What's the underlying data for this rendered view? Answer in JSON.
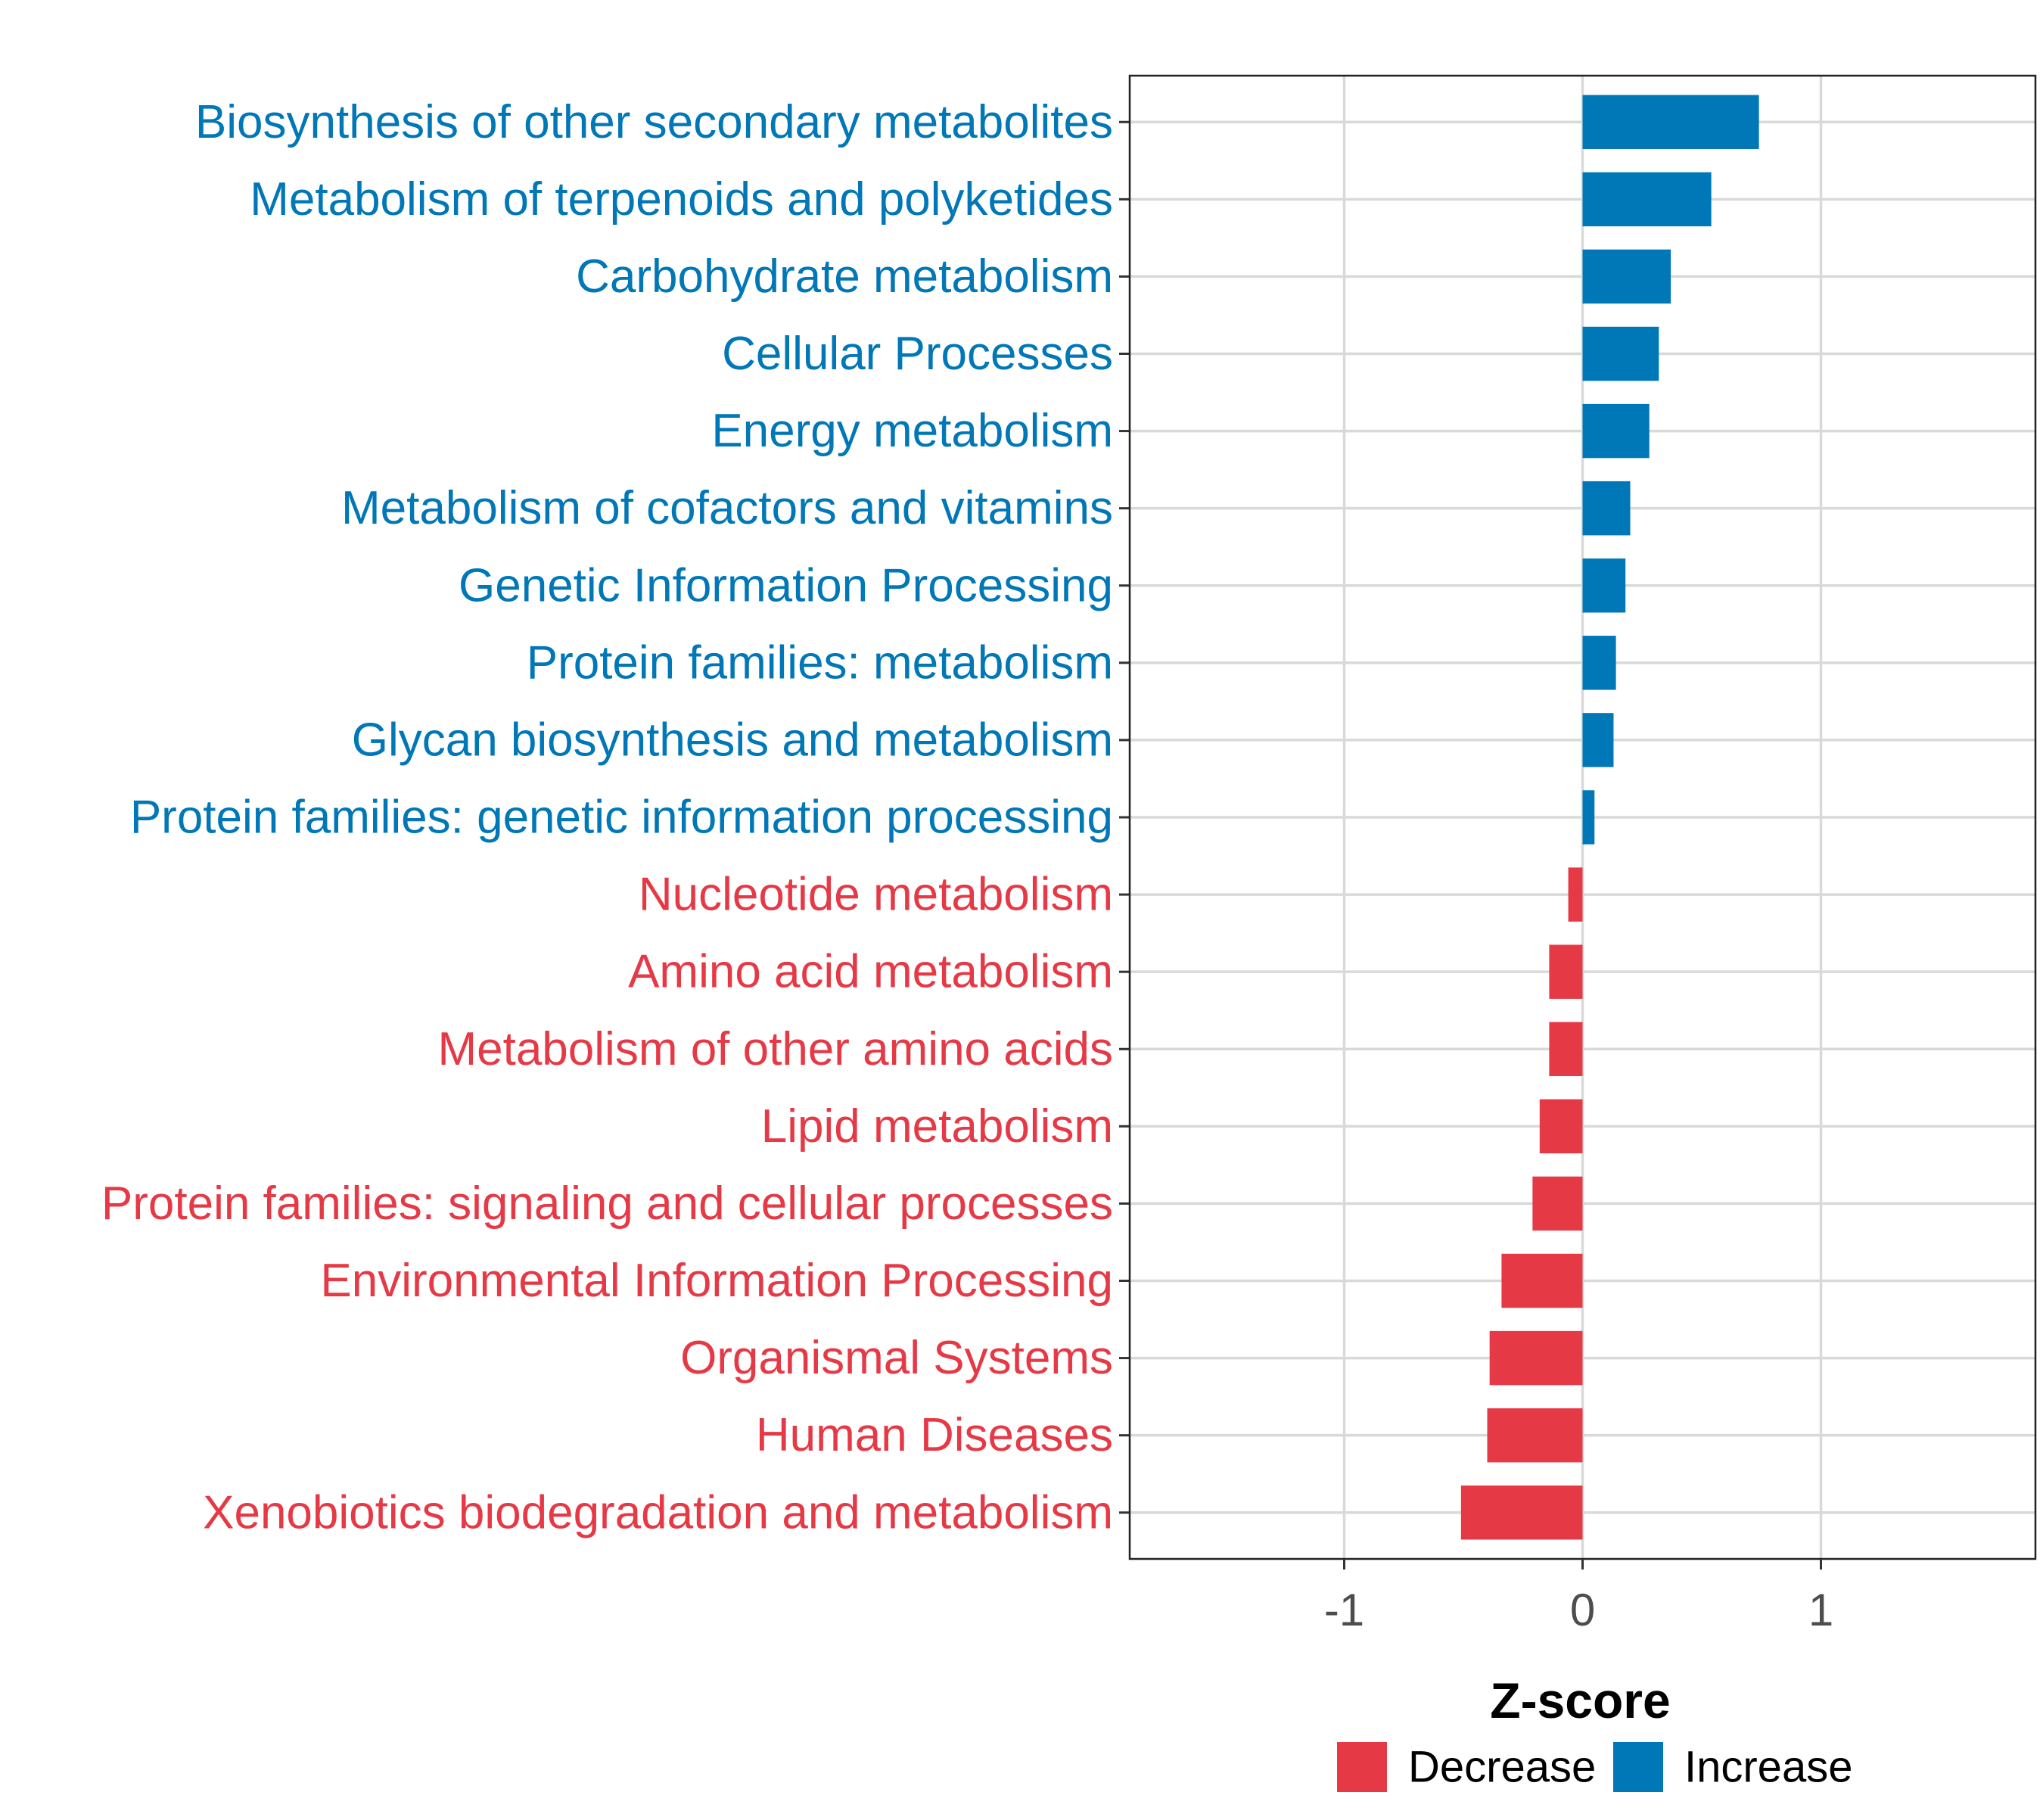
{
  "chart_data": {
    "type": "bar",
    "orientation": "horizontal",
    "title": "",
    "xlabel": "Z-score",
    "ylabel": "",
    "xlim": [
      -1.9,
      1.9
    ],
    "x_ticks": [
      -1,
      0,
      1
    ],
    "x_tick_labels": [
      "-1",
      "0",
      "1"
    ],
    "grid": true,
    "legend_position": "bottom",
    "colors": {
      "Decrease": "#E63946",
      "Increase": "#0077B6"
    },
    "categories": [
      "Biosynthesis of other secondary metabolites",
      "Metabolism of terpenoids and polyketides",
      "Carbohydrate metabolism",
      "Cellular Processes",
      "Energy metabolism",
      "Metabolism of cofactors and vitamins",
      "Genetic Information Processing",
      "Protein families: metabolism",
      "Glycan biosynthesis and metabolism",
      "Protein families: genetic information processing",
      "Nucleotide metabolism",
      "Amino acid metabolism",
      "Metabolism of other amino acids",
      "Lipid metabolism",
      "Protein families: signaling and cellular processes",
      "Environmental Information Processing",
      "Organismal Systems",
      "Human Diseases",
      "Xenobiotics biodegradation and metabolism"
    ],
    "values": [
      0.74,
      0.54,
      0.37,
      0.32,
      0.28,
      0.2,
      0.18,
      0.14,
      0.13,
      0.05,
      -0.06,
      -0.14,
      -0.14,
      -0.18,
      -0.21,
      -0.34,
      -0.39,
      -0.4,
      -0.51
    ],
    "groups": [
      "Increase",
      "Increase",
      "Increase",
      "Increase",
      "Increase",
      "Increase",
      "Increase",
      "Increase",
      "Increase",
      "Increase",
      "Decrease",
      "Decrease",
      "Decrease",
      "Decrease",
      "Decrease",
      "Decrease",
      "Decrease",
      "Decrease",
      "Decrease"
    ],
    "legend": [
      "Decrease",
      "Increase"
    ]
  }
}
